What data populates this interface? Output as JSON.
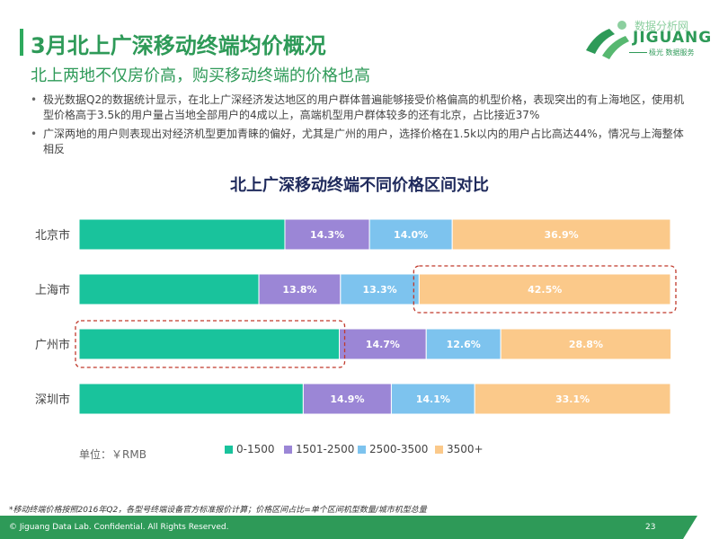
{
  "header": {
    "title": "3月北上广深移动终端均价概况",
    "subtitle": "北上两地不仅房价高，购买移动终端的价格也高",
    "bullets": [
      "极光数据Q2的数据统计显示，在北上广深经济发达地区的用户群体普遍能够接受价格偏高的机型价格，表现突出的有上海地区，使用机型价格高于3.5k的用户量占当地全部用户的4成以上，高端机型用户群体较多的还有北京，占比接近37%",
      "广深两地的用户则表现出对经济机型更加青睐的偏好，尤其是广州的用户，选择价格在1.5k以内的用户占比高达44%，情况与上海整体相反"
    ]
  },
  "logo": {
    "top_text": "数据分析网",
    "brand": "JIGUANG",
    "sub_text": "极光 数据服务"
  },
  "chart_data": {
    "type": "bar",
    "orientation": "horizontal",
    "stacked": true,
    "normalized": true,
    "title": "北上广深移动终端不同价格区间对比",
    "categories": [
      "北京市",
      "上海市",
      "广州市",
      "深圳市"
    ],
    "series": [
      {
        "name": "0-1500",
        "color": "#19c39c",
        "values": [
          34.8,
          30.4,
          44.0,
          37.9
        ],
        "labels": [
          "",
          "",
          "",
          ""
        ]
      },
      {
        "name": "1501-2500",
        "color": "#9b86d6",
        "values": [
          14.3,
          13.8,
          14.7,
          14.9
        ],
        "labels": [
          "14.3%",
          "13.8%",
          "14.7%",
          "14.9%"
        ]
      },
      {
        "name": "2500-3500",
        "color": "#7dc3ee",
        "values": [
          14.0,
          13.3,
          12.6,
          14.1
        ],
        "labels": [
          "14.0%",
          "13.3%",
          "12.6%",
          "14.1%"
        ]
      },
      {
        "name": "3500+",
        "color": "#fbc98a",
        "values": [
          36.9,
          42.5,
          28.8,
          33.1
        ],
        "labels": [
          "36.9%",
          "42.5%",
          "28.8%",
          "33.1%"
        ]
      }
    ],
    "xlim": [
      0,
      100
    ],
    "grid": false,
    "legend_position": "bottom",
    "highlights": [
      {
        "category": "上海市",
        "series": "3500+"
      },
      {
        "category": "广州市",
        "series": "0-1500"
      }
    ],
    "highlight_color": "#c0392b"
  },
  "unit_label": "单位：￥RMB",
  "footnote": "*移动终端价格按照2016年Q2，各型号终端设备官方标准报价计算；价格区间占比=单个区间机型数量/城市机型总量",
  "footer": {
    "copyright": "© Jiguang Data Lab. Confidential. All Rights Reserved.",
    "page_number": "23"
  },
  "colors": {
    "accent": "#2e9a58",
    "chart_title": "#1f2a5c"
  }
}
